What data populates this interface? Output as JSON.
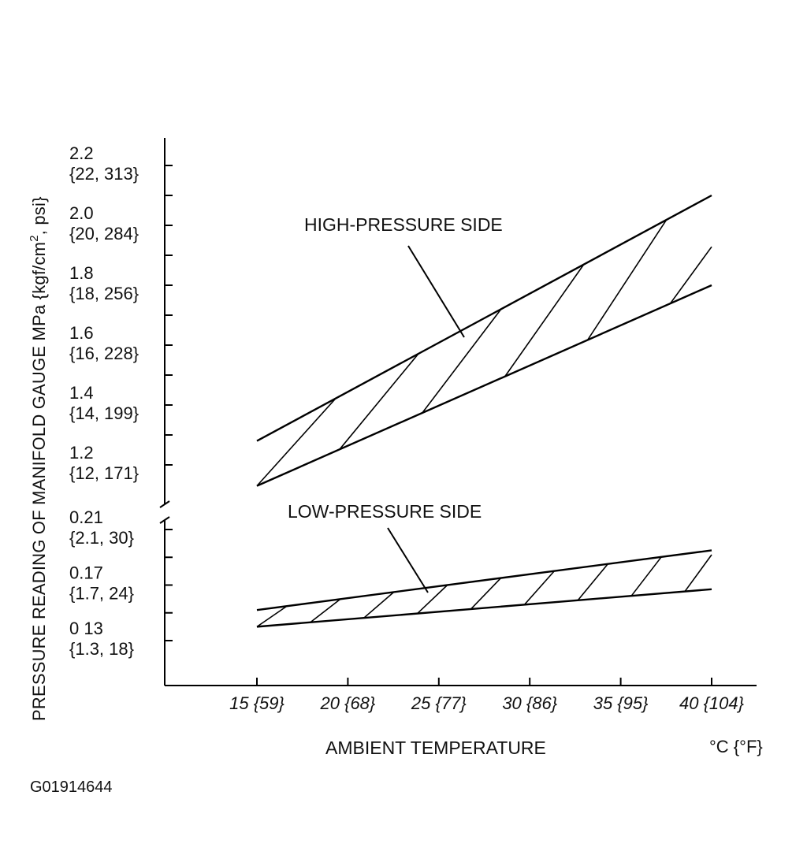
{
  "chart_data": {
    "type": "area",
    "ylabel_parts": [
      "PRESSURE READING OF MANIFOLD GAUGE MPa {kgf/cm",
      "2",
      ", psi}"
    ],
    "xlabel": "AMBIENT TEMPERATURE",
    "x_unit": "°C {°F}",
    "figure_id": "G01914644",
    "x_ticks": [
      {
        "value": 15,
        "label": "15 {59}"
      },
      {
        "value": 20,
        "label": "20 {68}"
      },
      {
        "value": 25,
        "label": "25 {77}"
      },
      {
        "value": 30,
        "label": "30 {86}"
      },
      {
        "value": 35,
        "label": "35 {95}"
      },
      {
        "value": 40,
        "label": "40 {104}"
      }
    ],
    "xlim": [
      10,
      42.5
    ],
    "upper_axis": {
      "ylim": [
        1.09,
        2.4
      ],
      "ticks": [
        1.2,
        1.3,
        1.4,
        1.5,
        1.6,
        1.7,
        1.8,
        1.9,
        2.0,
        2.1,
        2.2
      ],
      "labels": [
        {
          "value": 2.2,
          "line1": "2.2",
          "line2": "{22, 313}"
        },
        {
          "value": 2.0,
          "line1": "2.0",
          "line2": "{20, 284}"
        },
        {
          "value": 1.8,
          "line1": "1.8",
          "line2": "{18, 256}"
        },
        {
          "value": 1.6,
          "line1": "1.6",
          "line2": "{16, 228}"
        },
        {
          "value": 1.4,
          "line1": "1.4",
          "line2": "{14, 199}"
        },
        {
          "value": 1.2,
          "line1": "1.2",
          "line2": "{12, 171}"
        }
      ]
    },
    "lower_axis": {
      "ylim": [
        0.09,
        0.21
      ],
      "ticks": [
        0.13,
        0.15,
        0.17,
        0.19,
        0.21
      ],
      "labels": [
        {
          "value": 0.21,
          "line1": "0.21",
          "line2": "{2.1, 30}"
        },
        {
          "value": 0.17,
          "line1": "0.17",
          "line2": "{1.7, 24}"
        },
        {
          "value": 0.13,
          "line1": "0 13",
          "line2": "{1.3, 18}"
        }
      ]
    },
    "series": [
      {
        "name": "HIGH-PRESSURE SIDE",
        "axis": "upper",
        "x": [
          15,
          40
        ],
        "upper": [
          1.28,
          2.1
        ],
        "lower": [
          1.13,
          1.8
        ]
      },
      {
        "name": "LOW-PRESSURE SIDE",
        "axis": "lower",
        "x": [
          15,
          40
        ],
        "upper": [
          0.152,
          0.195
        ],
        "lower": [
          0.14,
          0.167
        ]
      }
    ]
  }
}
